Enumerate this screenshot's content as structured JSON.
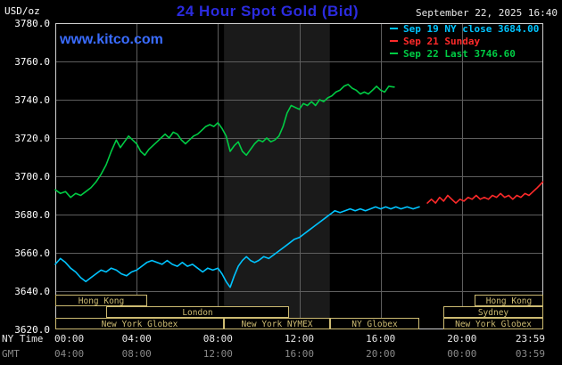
{
  "header": {
    "unit_label": "USD/oz",
    "title": "24 Hour Spot Gold (Bid)",
    "datetime": "September 22, 2025 16:40",
    "watermark": "www.kitco.com",
    "legend": [
      {
        "label": "Sep 19 NY close 3684.00",
        "color": "#00c4ff"
      },
      {
        "label": "Sep 21 Sunday",
        "color": "#ff2a2a"
      },
      {
        "label": "Sep 22 Last 3746.60",
        "color": "#00cc44"
      }
    ]
  },
  "axis": {
    "ny_time_label": "NY Time",
    "gmt_label": "GMT",
    "ny_ticks": [
      "00:00",
      "04:00",
      "08:00",
      "12:00",
      "16:00",
      "20:00",
      "23:59"
    ],
    "gmt_ticks": [
      "04:00",
      "08:00",
      "12:00",
      "16:00",
      "20:00",
      "00:00",
      "03:59"
    ]
  },
  "chart_data": {
    "type": "line",
    "title": "24 Hour Spot Gold (Bid)",
    "ylabel": "USD/oz",
    "ylim": [
      3620,
      3780
    ],
    "ytick_step": 20,
    "xlim_hours": [
      0,
      24
    ],
    "xticks_hours": [
      0,
      4,
      8,
      12,
      16,
      20,
      23.983
    ],
    "grid": true,
    "grid_color": "#5e5e5e",
    "band_hours": [
      8.3,
      13.5
    ],
    "band_color": "#1a1a1a",
    "ny_close": 3684.0,
    "last": 3746.6,
    "series": [
      {
        "name": "sep19-ny-close",
        "label": "Sep 19 NY close 3684.00",
        "color": "#00c4ff",
        "points": [
          [
            0,
            3654
          ],
          [
            0.25,
            3657
          ],
          [
            0.5,
            3655
          ],
          [
            0.75,
            3652
          ],
          [
            1,
            3650
          ],
          [
            1.25,
            3647
          ],
          [
            1.5,
            3645
          ],
          [
            1.75,
            3647
          ],
          [
            2,
            3649
          ],
          [
            2.25,
            3651
          ],
          [
            2.5,
            3650
          ],
          [
            2.75,
            3652
          ],
          [
            3,
            3651
          ],
          [
            3.25,
            3649
          ],
          [
            3.5,
            3648
          ],
          [
            3.75,
            3650
          ],
          [
            4,
            3651
          ],
          [
            4.25,
            3653
          ],
          [
            4.5,
            3655
          ],
          [
            4.75,
            3656
          ],
          [
            5,
            3655
          ],
          [
            5.25,
            3654
          ],
          [
            5.5,
            3656
          ],
          [
            5.75,
            3654
          ],
          [
            6,
            3653
          ],
          [
            6.25,
            3655
          ],
          [
            6.5,
            3653
          ],
          [
            6.75,
            3654
          ],
          [
            7,
            3652
          ],
          [
            7.25,
            3650
          ],
          [
            7.5,
            3652
          ],
          [
            7.75,
            3651
          ],
          [
            8,
            3652
          ],
          [
            8.2,
            3649
          ],
          [
            8.4,
            3645
          ],
          [
            8.6,
            3642
          ],
          [
            8.8,
            3648
          ],
          [
            9,
            3653
          ],
          [
            9.2,
            3656
          ],
          [
            9.4,
            3658
          ],
          [
            9.6,
            3656
          ],
          [
            9.8,
            3655
          ],
          [
            10,
            3656
          ],
          [
            10.25,
            3658
          ],
          [
            10.5,
            3657
          ],
          [
            10.75,
            3659
          ],
          [
            11,
            3661
          ],
          [
            11.25,
            3663
          ],
          [
            11.5,
            3665
          ],
          [
            11.75,
            3667
          ],
          [
            12,
            3668
          ],
          [
            12.25,
            3670
          ],
          [
            12.5,
            3672
          ],
          [
            12.75,
            3674
          ],
          [
            13,
            3676
          ],
          [
            13.25,
            3678
          ],
          [
            13.5,
            3680
          ],
          [
            13.75,
            3682
          ],
          [
            14,
            3681
          ],
          [
            14.25,
            3682
          ],
          [
            14.5,
            3683
          ],
          [
            14.75,
            3682
          ],
          [
            15,
            3683
          ],
          [
            15.25,
            3682
          ],
          [
            15.5,
            3683
          ],
          [
            15.75,
            3684
          ],
          [
            16,
            3683
          ],
          [
            16.25,
            3684
          ],
          [
            16.5,
            3683
          ],
          [
            16.75,
            3684
          ],
          [
            17,
            3683
          ],
          [
            17.3,
            3684
          ],
          [
            17.6,
            3683
          ],
          [
            17.9,
            3684
          ]
        ]
      },
      {
        "name": "sep21-sunday",
        "label": "Sep 21 Sunday",
        "color": "#ff2a2a",
        "points": [
          [
            18.3,
            3686
          ],
          [
            18.5,
            3688
          ],
          [
            18.7,
            3686
          ],
          [
            18.9,
            3689
          ],
          [
            19.1,
            3687
          ],
          [
            19.3,
            3690
          ],
          [
            19.5,
            3688
          ],
          [
            19.7,
            3686
          ],
          [
            19.9,
            3688
          ],
          [
            20.1,
            3687
          ],
          [
            20.3,
            3689
          ],
          [
            20.5,
            3688
          ],
          [
            20.7,
            3690
          ],
          [
            20.9,
            3688
          ],
          [
            21.1,
            3689
          ],
          [
            21.3,
            3688
          ],
          [
            21.5,
            3690
          ],
          [
            21.7,
            3689
          ],
          [
            21.9,
            3691
          ],
          [
            22.1,
            3689
          ],
          [
            22.3,
            3690
          ],
          [
            22.5,
            3688
          ],
          [
            22.7,
            3690
          ],
          [
            22.9,
            3689
          ],
          [
            23.1,
            3691
          ],
          [
            23.3,
            3690
          ],
          [
            23.5,
            3692
          ],
          [
            23.7,
            3694
          ],
          [
            23.98,
            3697
          ]
        ]
      },
      {
        "name": "sep22-last",
        "label": "Sep 22 Last 3746.60",
        "color": "#00cc44",
        "points": [
          [
            0,
            3693
          ],
          [
            0.25,
            3691
          ],
          [
            0.5,
            3692
          ],
          [
            0.75,
            3689
          ],
          [
            1,
            3691
          ],
          [
            1.25,
            3690
          ],
          [
            1.5,
            3692
          ],
          [
            1.75,
            3694
          ],
          [
            2,
            3697
          ],
          [
            2.25,
            3701
          ],
          [
            2.5,
            3706
          ],
          [
            2.75,
            3713
          ],
          [
            3,
            3719
          ],
          [
            3.2,
            3715
          ],
          [
            3.4,
            3718
          ],
          [
            3.6,
            3721
          ],
          [
            3.8,
            3719
          ],
          [
            4,
            3717
          ],
          [
            4.2,
            3713
          ],
          [
            4.4,
            3711
          ],
          [
            4.6,
            3714
          ],
          [
            4.8,
            3716
          ],
          [
            5,
            3718
          ],
          [
            5.2,
            3720
          ],
          [
            5.4,
            3722
          ],
          [
            5.6,
            3720
          ],
          [
            5.8,
            3723
          ],
          [
            6,
            3722
          ],
          [
            6.2,
            3719
          ],
          [
            6.4,
            3717
          ],
          [
            6.6,
            3719
          ],
          [
            6.8,
            3721
          ],
          [
            7,
            3722
          ],
          [
            7.2,
            3724
          ],
          [
            7.4,
            3726
          ],
          [
            7.6,
            3727
          ],
          [
            7.8,
            3726
          ],
          [
            8,
            3728
          ],
          [
            8.2,
            3725
          ],
          [
            8.4,
            3721
          ],
          [
            8.6,
            3713
          ],
          [
            8.8,
            3716
          ],
          [
            9,
            3718
          ],
          [
            9.2,
            3713
          ],
          [
            9.4,
            3711
          ],
          [
            9.6,
            3714
          ],
          [
            9.8,
            3717
          ],
          [
            10,
            3719
          ],
          [
            10.2,
            3718
          ],
          [
            10.4,
            3720
          ],
          [
            10.6,
            3718
          ],
          [
            10.8,
            3719
          ],
          [
            11,
            3721
          ],
          [
            11.2,
            3726
          ],
          [
            11.4,
            3733
          ],
          [
            11.6,
            3737
          ],
          [
            11.8,
            3736
          ],
          [
            12,
            3735
          ],
          [
            12.2,
            3738
          ],
          [
            12.4,
            3737
          ],
          [
            12.6,
            3739
          ],
          [
            12.8,
            3737
          ],
          [
            13,
            3740
          ],
          [
            13.2,
            3739
          ],
          [
            13.4,
            3741
          ],
          [
            13.6,
            3742
          ],
          [
            13.8,
            3744
          ],
          [
            14,
            3745
          ],
          [
            14.2,
            3747
          ],
          [
            14.4,
            3748
          ],
          [
            14.6,
            3746
          ],
          [
            14.8,
            3745
          ],
          [
            15,
            3743
          ],
          [
            15.2,
            3744
          ],
          [
            15.4,
            3743
          ],
          [
            15.6,
            3745
          ],
          [
            15.8,
            3747
          ],
          [
            16,
            3745
          ],
          [
            16.2,
            3744
          ],
          [
            16.4,
            3747
          ],
          [
            16.67,
            3746.6
          ]
        ]
      }
    ],
    "sessions": [
      {
        "row": 0,
        "start": 0,
        "end": 4.5,
        "label": "Hong Kong"
      },
      {
        "row": 0,
        "start": 20.6,
        "end": 24,
        "label": "Hong Kong"
      },
      {
        "row": 1,
        "start": 2.5,
        "end": 11.5,
        "label": "London"
      },
      {
        "row": 1,
        "start": 19.1,
        "end": 24,
        "label": "Sydney"
      },
      {
        "row": 2,
        "start": 0,
        "end": 8.3,
        "label": "New York Globex"
      },
      {
        "row": 2,
        "start": 8.3,
        "end": 13.5,
        "label": "New York NYMEX"
      },
      {
        "row": 2,
        "start": 13.5,
        "end": 17.9,
        "label": "NY Globex"
      },
      {
        "row": 2,
        "start": 19.1,
        "end": 24,
        "label": "New York Globex"
      }
    ],
    "session_color": "#cdbb72"
  }
}
